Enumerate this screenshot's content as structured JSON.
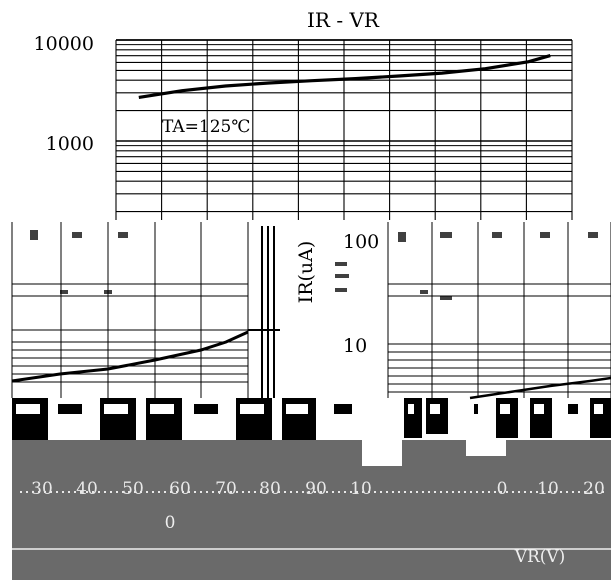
{
  "chart_data": {
    "type": "line",
    "title": "IR - VR",
    "xlabel": "VR(V)",
    "ylabel": "IR(uA)",
    "y_scale": "log",
    "y_tick_labels_upper": [
      "10000",
      "1000"
    ],
    "y_tick_labels_lower": [
      "100",
      "10"
    ],
    "x_tick_labels": [
      "30",
      "40",
      "50",
      "60",
      "70",
      "80",
      "90",
      "10",
      "0",
      "10",
      "20"
    ],
    "x_center_label": "0",
    "annotation": "TA=125℃",
    "x": [
      0.05,
      0.15,
      0.25,
      0.35,
      0.45,
      0.55,
      0.65,
      0.75,
      0.85,
      0.95,
      1.0
    ],
    "series": [
      {
        "values": [
          2700,
          3150,
          3500,
          3750,
          3950,
          4150,
          4400,
          4700,
          5200,
          6100,
          7000
        ]
      }
    ],
    "ylim": [
      100,
      10000
    ],
    "grid": true
  }
}
